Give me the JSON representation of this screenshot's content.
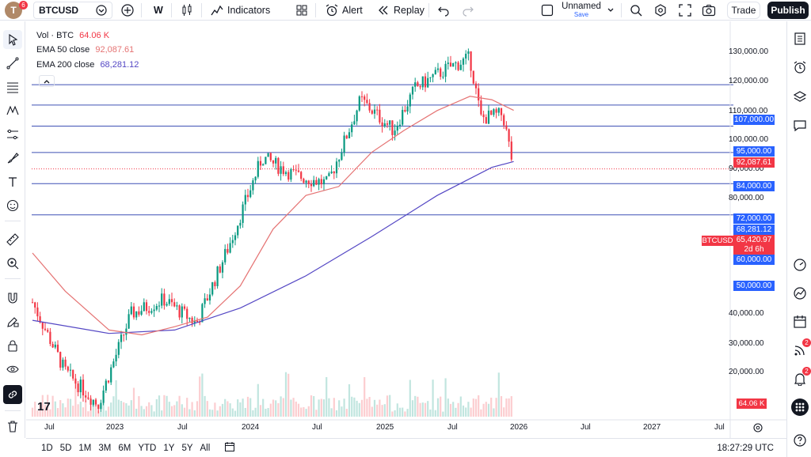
{
  "header": {
    "avatar_letter": "T",
    "avatar_badge": "6",
    "symbol": "BTCUSD",
    "interval": "W",
    "indicators_label": "Indicators",
    "alert_label": "Alert",
    "replay_label": "Replay",
    "layout_name": "Unnamed",
    "layout_status": "Save",
    "trade_label": "Trade",
    "publish_label": "Publish"
  },
  "legend": {
    "vol_label": "Vol · BTC",
    "vol_value": "64.06 K",
    "ema50_label": "EMA 50 close",
    "ema50_value": "92,087.61",
    "ema200_label": "EMA 200 close",
    "ema200_value": "68,281.12"
  },
  "price_axis": {
    "ticks": [
      "130,000.00",
      "120,000.00",
      "110,000.00",
      "100,000.00",
      "90,000.00",
      "80,000.00",
      "40,000.00",
      "30,000.00",
      "20,000.00"
    ],
    "levels": [
      {
        "label": "107,000.00",
        "value": 107000
      },
      {
        "label": "95,000.00",
        "value": 95000
      },
      {
        "label": "84,000.00",
        "value": 84000
      },
      {
        "label": "72,000.00",
        "value": 72000
      },
      {
        "label": "60,000.00",
        "value": 60000
      },
      {
        "label": "50,000.00",
        "value": 50000
      }
    ],
    "ema50_tag": "92,087.61",
    "ema200_tag": "68,281.12",
    "price_tag": "65,420.97",
    "countdown": "2d 6h",
    "symbol_tag": "BTCUSD",
    "volume_tag": "64.06 K"
  },
  "time_axis": {
    "labels": [
      "Jul",
      "2023",
      "Jul",
      "2024",
      "Jul",
      "2025",
      "Jul",
      "2026",
      "Jul",
      "2027",
      "Jul"
    ]
  },
  "bottom_bar": {
    "ranges": [
      "1D",
      "5D",
      "1M",
      "3M",
      "6M",
      "YTD",
      "1Y",
      "5Y",
      "All"
    ],
    "clock": "18:27:29 UTC"
  },
  "right_toolbar": {
    "notifications_badge": "2",
    "alerts_badge": "2"
  },
  "colors": {
    "up": "#089981",
    "down": "#f23645",
    "ema50": "#e57373",
    "ema200": "#5447c4",
    "level": "#2962ff",
    "level_line": "#3f51b5"
  },
  "chart_data": {
    "type": "candlestick",
    "symbol": "BTCUSD",
    "interval": "W",
    "x_range": [
      "2022-06",
      "2027-09"
    ],
    "ylim": [
      14000,
      140000
    ],
    "price_scale": "log",
    "current_price": 65420.97,
    "horizontal_levels": [
      107000,
      95000,
      84000,
      72000,
      60000,
      50000
    ],
    "ema50_points": [
      {
        "date": "2022-06",
        "value": 40000
      },
      {
        "date": "2022-09",
        "value": 32000
      },
      {
        "date": "2023-01",
        "value": 25500
      },
      {
        "date": "2023-04",
        "value": 24800
      },
      {
        "date": "2023-07",
        "value": 26000
      },
      {
        "date": "2023-10",
        "value": 27500
      },
      {
        "date": "2024-01",
        "value": 33000
      },
      {
        "date": "2024-04",
        "value": 46000
      },
      {
        "date": "2024-07",
        "value": 56000
      },
      {
        "date": "2024-10",
        "value": 59000
      },
      {
        "date": "2025-01",
        "value": 72000
      },
      {
        "date": "2025-04",
        "value": 82000
      },
      {
        "date": "2025-07",
        "value": 92000
      },
      {
        "date": "2025-10",
        "value": 100000
      },
      {
        "date": "2025-12",
        "value": 98000
      },
      {
        "date": "2026-02",
        "value": 92087
      }
    ],
    "ema200_points": [
      {
        "date": "2022-06",
        "value": 27000
      },
      {
        "date": "2023-01",
        "value": 25000
      },
      {
        "date": "2023-07",
        "value": 25500
      },
      {
        "date": "2024-01",
        "value": 29000
      },
      {
        "date": "2024-07",
        "value": 35000
      },
      {
        "date": "2025-01",
        "value": 44000
      },
      {
        "date": "2025-07",
        "value": 56000
      },
      {
        "date": "2025-12",
        "value": 66000
      },
      {
        "date": "2026-02",
        "value": 68281
      }
    ],
    "price_path": [
      {
        "date": "2022-06",
        "value": 30000
      },
      {
        "date": "2022-09",
        "value": 20000
      },
      {
        "date": "2022-12",
        "value": 16500
      },
      {
        "date": "2023-03",
        "value": 28000
      },
      {
        "date": "2023-06",
        "value": 30500
      },
      {
        "date": "2023-09",
        "value": 26500
      },
      {
        "date": "2023-12",
        "value": 42000
      },
      {
        "date": "2024-03",
        "value": 70000
      },
      {
        "date": "2024-06",
        "value": 63000
      },
      {
        "date": "2024-09",
        "value": 60000
      },
      {
        "date": "2024-12",
        "value": 98000
      },
      {
        "date": "2025-03",
        "value": 82000
      },
      {
        "date": "2025-05",
        "value": 105000
      },
      {
        "date": "2025-08",
        "value": 118000
      },
      {
        "date": "2025-10",
        "value": 125000
      },
      {
        "date": "2025-11",
        "value": 88000
      },
      {
        "date": "2026-01",
        "value": 90000
      },
      {
        "date": "2026-02",
        "value": 65420
      }
    ],
    "time_labels": [
      "Jul",
      "2023",
      "Jul",
      "2024",
      "Jul",
      "2025",
      "Jul",
      "2026",
      "Jul",
      "2027",
      "Jul"
    ],
    "legend": [
      "Vol · BTC 64.06 K",
      "EMA 50 close 92,087.61",
      "EMA 200 close 68,281.12"
    ]
  }
}
